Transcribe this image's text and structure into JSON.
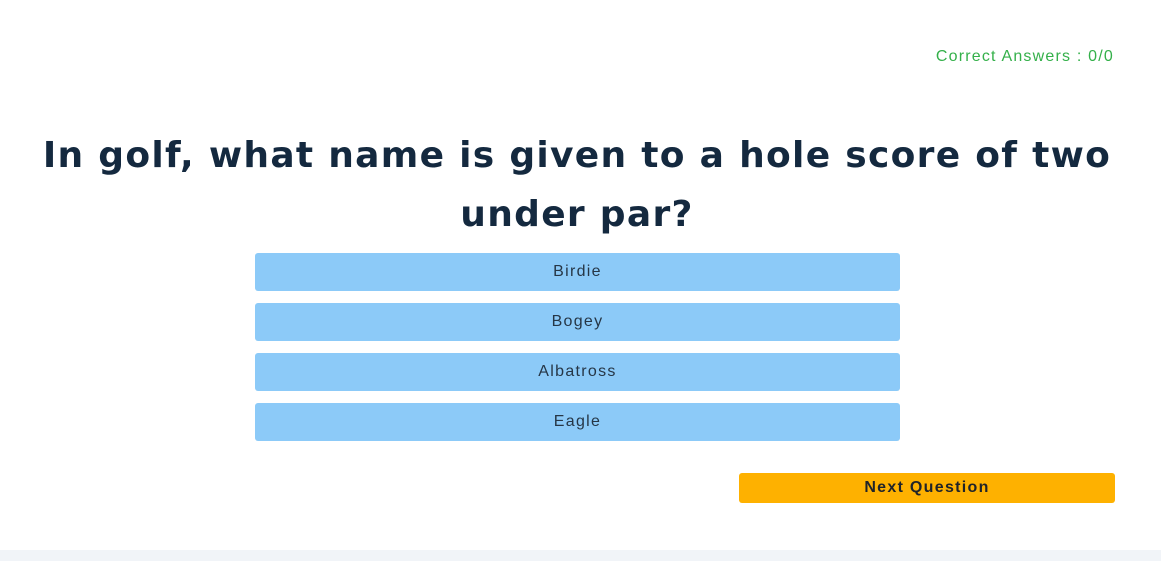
{
  "score": {
    "label": "Correct Answers : 0/0"
  },
  "question": {
    "text": "In golf, what name is given to a hole score of two under par?"
  },
  "answers": [
    {
      "label": "Birdie"
    },
    {
      "label": "Bogey"
    },
    {
      "label": "Albatross"
    },
    {
      "label": "Eagle"
    }
  ],
  "next_button": {
    "label": "Next Question"
  },
  "colors": {
    "score_text": "#34b04a",
    "question_text": "#14293f",
    "answer_bg": "#8ccaf8",
    "next_bg": "#feb100",
    "page_bg": "#f1f4f8"
  }
}
